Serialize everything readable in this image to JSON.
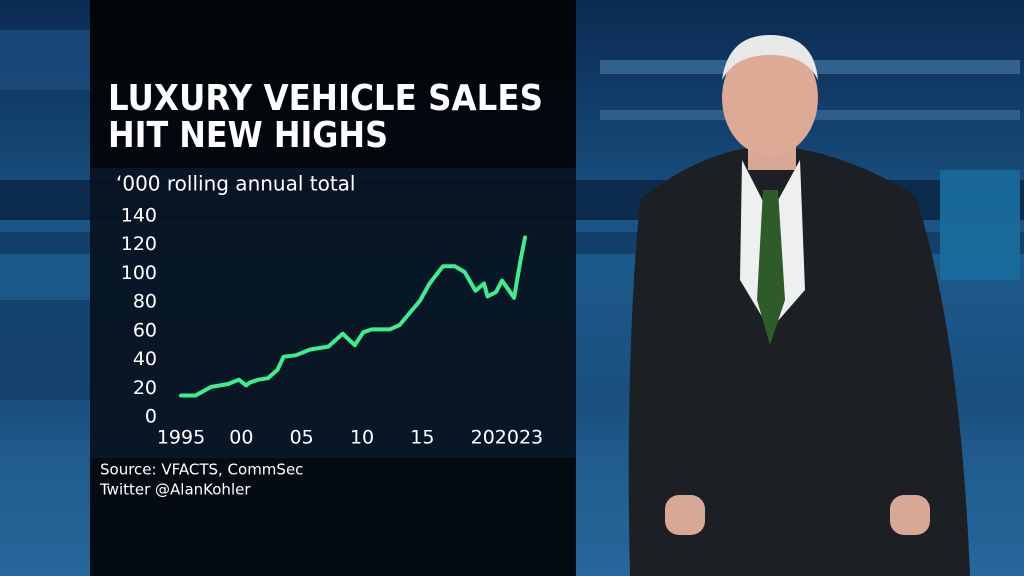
{
  "chart_data": {
    "type": "line",
    "title": [
      "LUXURY VEHICLE SALES",
      "HIT NEW HIGHS"
    ],
    "subtitle": "‘000 rolling annual total",
    "source": "Source: VFACTS, CommSec",
    "credit": "Twitter @AlanKohler",
    "color": "#3cef8e",
    "x": [
      1995,
      1996.2,
      1997.5,
      1998.9,
      1999.8,
      2000.4,
      2000.7,
      2001.4,
      2002.2,
      2003,
      2003.5,
      2004.5,
      2005.7,
      2007.2,
      2008.4,
      2009.4,
      2010.1,
      2010.8,
      2012.3,
      2013.1,
      2013.9,
      2014.8,
      2015.6,
      2016.7,
      2017.7,
      2018.5,
      2019.4,
      2020.1,
      2020.4,
      2021.1,
      2021.6,
      2022.1,
      2022.6,
      2023.1,
      2023.5
    ],
    "values": [
      15,
      15,
      21,
      23,
      26,
      22,
      24,
      26,
      27,
      33,
      42,
      43,
      47,
      49,
      58,
      50,
      59,
      61,
      61,
      64,
      72,
      81,
      93,
      105,
      105,
      101,
      88,
      93,
      84,
      87,
      95,
      89,
      83,
      108,
      125
    ],
    "xlim": [
      1995,
      2023.5
    ],
    "xticks": [
      1995,
      {
        "value": 2000,
        "label": "00"
      },
      {
        "value": 2005,
        "label": "05"
      },
      {
        "value": 2010,
        "label": "10"
      },
      {
        "value": 2015,
        "label": "15"
      },
      {
        "value": 2020,
        "label": "20"
      },
      2023
    ],
    "ylim": [
      0,
      140
    ],
    "yticks": [
      0,
      20,
      40,
      60,
      80,
      100,
      120,
      140
    ],
    "grid": false
  }
}
